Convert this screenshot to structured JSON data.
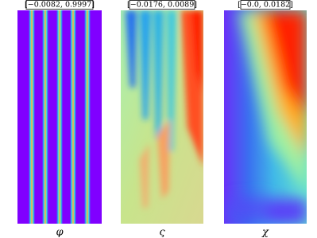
{
  "panels": [
    {
      "range": "[−0.0082, 0.9997]",
      "symbol": "φ"
    },
    {
      "range": "[−0.0176, 0.0089]",
      "symbol": "ς"
    },
    {
      "range": "[−0.0, 0.0182]",
      "symbol": "χ"
    }
  ]
}
